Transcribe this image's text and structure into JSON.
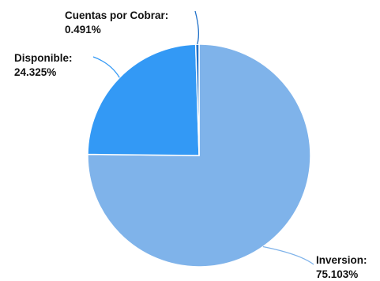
{
  "chart_data": {
    "type": "pie",
    "title": "",
    "slices": [
      {
        "label": "Inversion",
        "value": 75.103,
        "display": "75.103%",
        "color": "#7FB3EA"
      },
      {
        "label": "Disponible",
        "value": 24.325,
        "display": "24.325%",
        "color": "#3399F5"
      },
      {
        "label": "Cuentas por Cobrar",
        "value": 0.491,
        "display": "0.491%",
        "color": "#1F70C8"
      }
    ],
    "legend": "none",
    "label_style": "outside-with-leader-lines"
  }
}
